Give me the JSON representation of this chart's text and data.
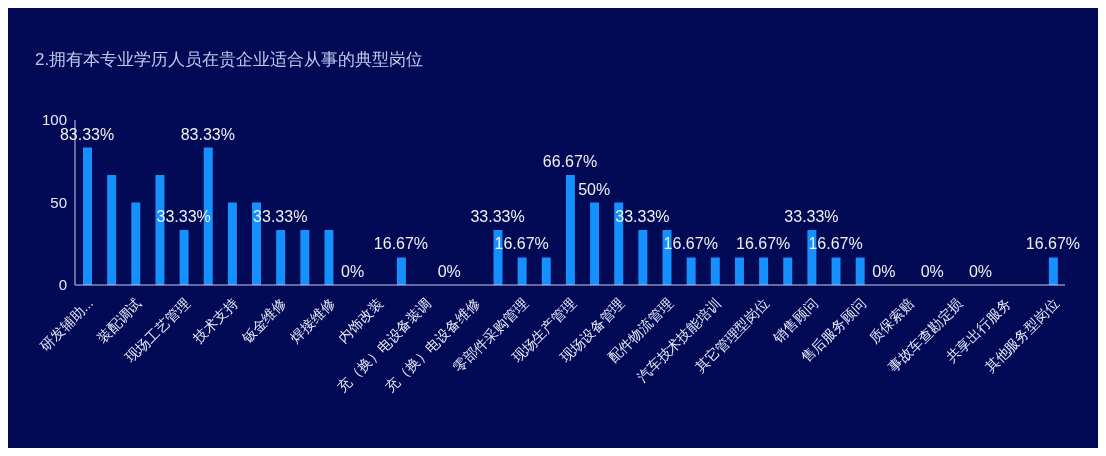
{
  "chart_data": {
    "type": "bar",
    "title": "2.拥有本专业学历人员在贵企业适合从事的典型岗位",
    "categories": [
      "研发辅助...",
      null,
      "装配调试",
      null,
      "现场工艺管理",
      null,
      "技术支持",
      null,
      "钣金维修",
      null,
      "焊接维修",
      null,
      "内饰改装",
      null,
      "充（换）电设备装调",
      null,
      "充（换）电设备维修",
      null,
      "零部件采购管理",
      null,
      "现场生产管理",
      null,
      "现场设备管理",
      null,
      "配件物流管理",
      null,
      "汽车技术技能培训",
      null,
      "其它管理型岗位",
      null,
      "销售顾问",
      null,
      "售后服务顾问",
      null,
      "质保索赔",
      null,
      "事故车查勘定损",
      null,
      "共享出行服务",
      null,
      "其他服务型岗位"
    ],
    "values": [
      83.33,
      66.67,
      50,
      66.67,
      33.33,
      83.33,
      50,
      50,
      33.33,
      33.33,
      33.33,
      0,
      0,
      16.67,
      0,
      0,
      0,
      33.33,
      16.67,
      16.67,
      66.67,
      50,
      50,
      33.33,
      33.33,
      16.67,
      16.67,
      16.67,
      16.67,
      16.67,
      33.33,
      16.67,
      16.67,
      0,
      0,
      0,
      0,
      0,
      0,
      0,
      16.67
    ],
    "value_labels": [
      "83.33%",
      null,
      null,
      null,
      "33.33%",
      "83.33%",
      null,
      null,
      "33.33%",
      null,
      null,
      "0%",
      null,
      "16.67%",
      null,
      "0%",
      null,
      "33.33%",
      "16.67%",
      null,
      "66.67%",
      "50%",
      null,
      "33.33%",
      null,
      "16.67%",
      null,
      null,
      "16.67%",
      null,
      "33.33%",
      "16.67%",
      null,
      "0%",
      null,
      "0%",
      null,
      "0%",
      null,
      null,
      "16.67%"
    ],
    "color": "#1590ff",
    "ylim": [
      0,
      100
    ],
    "yticks": [
      0,
      50,
      100
    ]
  }
}
